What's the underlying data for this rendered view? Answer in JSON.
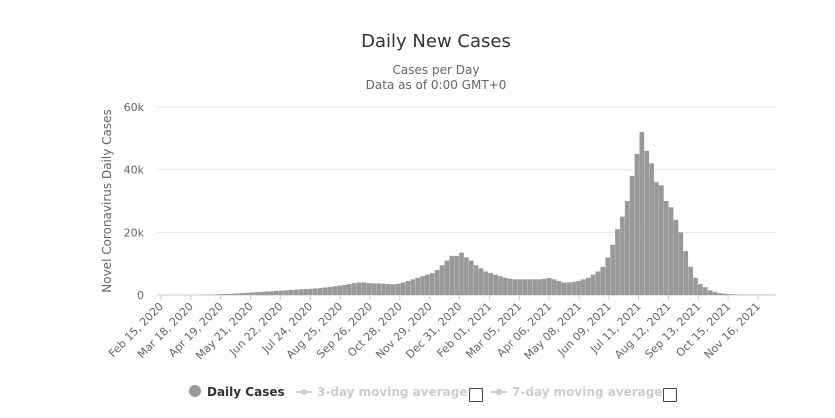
{
  "chart_data": {
    "type": "bar",
    "title": "Daily New Cases",
    "subtitle_line1": "Cases per Day",
    "subtitle_line2": "Data as of 0:00 GMT+0",
    "ylabel": "Novel Coronavirus Daily Cases",
    "ylim": [
      0,
      60000
    ],
    "yticks": [
      0,
      20000,
      40000,
      60000
    ],
    "ytick_labels": [
      "0",
      "20k",
      "40k",
      "60k"
    ],
    "xtick_labels": [
      "Feb 15, 2020",
      "Mar 18, 2020",
      "Apr 19, 2020",
      "May 21, 2020",
      "Jun 22, 2020",
      "Jul 24, 2020",
      "Aug 25, 2020",
      "Sep 26, 2020",
      "Oct 28, 2020",
      "Nov 29, 2020",
      "Dec 31, 2020",
      "Feb 01, 2021",
      "Mar 05, 2021",
      "Apr 06, 2021",
      "May 08, 2021",
      "Jun 09, 2021",
      "Jul 11, 2021",
      "Aug 12, 2021",
      "Sep 13, 2021",
      "Oct 15, 2021",
      "Nov 16, 2021"
    ],
    "grid": true,
    "bar_color": "#999999",
    "series_sampled_every_days": 4,
    "values": [
      0,
      0,
      0,
      0,
      0,
      0,
      0,
      0,
      0,
      50,
      100,
      150,
      200,
      300,
      350,
      400,
      500,
      600,
      700,
      800,
      900,
      1000,
      1100,
      1200,
      1300,
      1400,
      1500,
      1600,
      1700,
      1800,
      1900,
      2000,
      2100,
      2200,
      2400,
      2600,
      2800,
      3000,
      3200,
      3500,
      3800,
      4000,
      4000,
      3800,
      3700,
      3700,
      3600,
      3500,
      3400,
      3600,
      4000,
      4500,
      5000,
      5500,
      6000,
      6500,
      7000,
      8000,
      9500,
      11000,
      12500,
      12500,
      13500,
      12000,
      11000,
      9500,
      8500,
      7500,
      7000,
      6500,
      6000,
      5500,
      5200,
      5000,
      5000,
      5000,
      5000,
      5000,
      5000,
      5200,
      5400,
      5000,
      4500,
      4000,
      4000,
      4200,
      4500,
      5000,
      5500,
      6500,
      7500,
      9000,
      12000,
      16000,
      21000,
      25000,
      30000,
      38000,
      45000,
      52000,
      46000,
      42000,
      36000,
      35000,
      30000,
      28000,
      24000,
      20000,
      14000,
      9000,
      5500,
      3500,
      2500,
      1500,
      1000,
      600,
      400,
      300,
      200,
      150,
      100,
      80,
      60,
      50,
      40,
      30,
      30
    ]
  },
  "legend": {
    "daily": "Daily Cases",
    "avg3": "3-day moving average",
    "avg7": "7-day moving average"
  },
  "colors": {
    "daily": "#999999",
    "avg_disabled": "#cccccc",
    "grid": "#e6e6e6",
    "text": "#333333",
    "axis_text": "#666666"
  }
}
